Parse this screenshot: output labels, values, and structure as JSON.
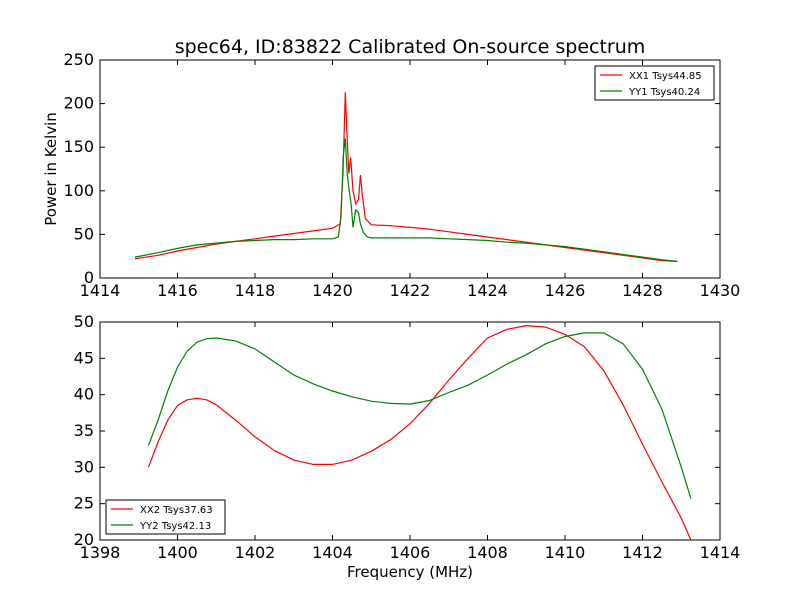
{
  "figure": {
    "title": "spec64, ID:83822 Calibrated On-source spectrum"
  },
  "chart_data": [
    {
      "type": "line",
      "title": "spec64, ID:83822 Calibrated On-source spectrum",
      "xlabel": "",
      "ylabel": "Power in Kelvin",
      "xlim": [
        1414,
        1430
      ],
      "ylim": [
        0,
        250
      ],
      "xticks": [
        "1414",
        "1416",
        "1418",
        "1420",
        "1422",
        "1424",
        "1426",
        "1428",
        "1430"
      ],
      "yticks": [
        "0",
        "50",
        "100",
        "150",
        "200",
        "250"
      ],
      "grid": false,
      "legend_position": "top-right",
      "series": [
        {
          "name": "XX1 Tsys44.85",
          "color": "#ff0000",
          "x": [
            1414.9,
            1415.5,
            1416.0,
            1416.5,
            1417.0,
            1417.5,
            1418.0,
            1418.5,
            1419.0,
            1419.5,
            1420.0,
            1420.2,
            1420.27,
            1420.33,
            1420.38,
            1420.42,
            1420.47,
            1420.53,
            1420.6,
            1420.67,
            1420.72,
            1420.77,
            1420.85,
            1421.0,
            1421.5,
            1422.0,
            1422.5,
            1423.0,
            1423.5,
            1424.0,
            1424.5,
            1425.0,
            1425.5,
            1426.0,
            1426.5,
            1427.0,
            1427.5,
            1428.0,
            1428.5,
            1428.9
          ],
          "y": [
            22,
            26,
            31,
            35,
            39,
            42,
            45,
            48,
            51,
            54,
            57,
            62,
            120,
            213,
            160,
            120,
            138,
            100,
            85,
            90,
            118,
            95,
            68,
            61,
            60,
            58,
            56,
            53,
            50,
            47,
            44,
            41,
            38,
            35,
            32,
            29,
            26,
            23,
            20,
            19
          ]
        },
        {
          "name": "YY1 Tsys40.24",
          "color": "#008000",
          "x": [
            1414.9,
            1415.5,
            1416.0,
            1416.5,
            1417.0,
            1417.5,
            1418.0,
            1418.5,
            1419.0,
            1419.5,
            1420.0,
            1420.15,
            1420.22,
            1420.28,
            1420.33,
            1420.38,
            1420.43,
            1420.48,
            1420.53,
            1420.6,
            1420.67,
            1420.72,
            1420.8,
            1420.9,
            1421.0,
            1421.5,
            1422.0,
            1422.5,
            1423.0,
            1423.5,
            1424.0,
            1424.5,
            1425.0,
            1425.5,
            1426.0,
            1426.5,
            1427.0,
            1427.5,
            1428.0,
            1428.5,
            1428.9
          ],
          "y": [
            24,
            29,
            34,
            38,
            40,
            42,
            43,
            44,
            44,
            45,
            45,
            47,
            70,
            140,
            160,
            120,
            100,
            85,
            58,
            78,
            75,
            62,
            52,
            47,
            46,
            46,
            46,
            46,
            45,
            44,
            43,
            41,
            40,
            38,
            36,
            33,
            30,
            27,
            24,
            21,
            19
          ]
        }
      ]
    },
    {
      "type": "line",
      "title": "",
      "xlabel": "Frequency (MHz)",
      "ylabel": "",
      "xlim": [
        1398,
        1414
      ],
      "ylim": [
        20,
        50
      ],
      "xticks": [
        "1398",
        "1400",
        "1402",
        "1404",
        "1406",
        "1408",
        "1410",
        "1412",
        "1414"
      ],
      "yticks": [
        "20",
        "25",
        "30",
        "35",
        "40",
        "45",
        "50"
      ],
      "grid": false,
      "legend_position": "bottom-left",
      "series": [
        {
          "name": "XX2 Tsys37.63",
          "color": "#ff0000",
          "x": [
            1399.25,
            1399.5,
            1399.75,
            1400.0,
            1400.25,
            1400.5,
            1400.75,
            1401.0,
            1401.5,
            1402.0,
            1402.5,
            1403.0,
            1403.5,
            1404.0,
            1404.5,
            1405.0,
            1405.5,
            1406.0,
            1406.5,
            1407.0,
            1407.5,
            1408.0,
            1408.5,
            1409.0,
            1409.5,
            1410.0,
            1410.5,
            1411.0,
            1411.5,
            1412.0,
            1412.5,
            1413.0,
            1413.25
          ],
          "y": [
            30,
            33.5,
            36.5,
            38.5,
            39.3,
            39.5,
            39.3,
            38.6,
            36.5,
            34.2,
            32.3,
            31.0,
            30.4,
            30.4,
            31.0,
            32.2,
            33.8,
            36.0,
            38.8,
            42.0,
            45.0,
            47.8,
            49.0,
            49.5,
            49.3,
            48.3,
            46.6,
            43.3,
            38.6,
            33.2,
            28.0,
            23.0,
            20.0
          ]
        },
        {
          "name": "YY2 Tsys42.13",
          "color": "#008000",
          "x": [
            1399.25,
            1399.5,
            1399.75,
            1400.0,
            1400.25,
            1400.5,
            1400.75,
            1401.0,
            1401.5,
            1402.0,
            1402.5,
            1403.0,
            1403.5,
            1404.0,
            1404.5,
            1405.0,
            1405.5,
            1406.0,
            1406.5,
            1407.0,
            1407.5,
            1408.0,
            1408.5,
            1409.0,
            1409.5,
            1410.0,
            1410.5,
            1411.0,
            1411.5,
            1412.0,
            1412.5,
            1413.0,
            1413.25
          ],
          "y": [
            33,
            36.5,
            40.5,
            43.8,
            46.0,
            47.2,
            47.7,
            47.8,
            47.4,
            46.3,
            44.5,
            42.7,
            41.5,
            40.5,
            39.7,
            39.1,
            38.8,
            38.7,
            39.2,
            40.3,
            41.3,
            42.7,
            44.2,
            45.5,
            47.0,
            48.0,
            48.5,
            48.5,
            47.0,
            43.5,
            38.0,
            30.0,
            25.7
          ]
        }
      ]
    }
  ]
}
